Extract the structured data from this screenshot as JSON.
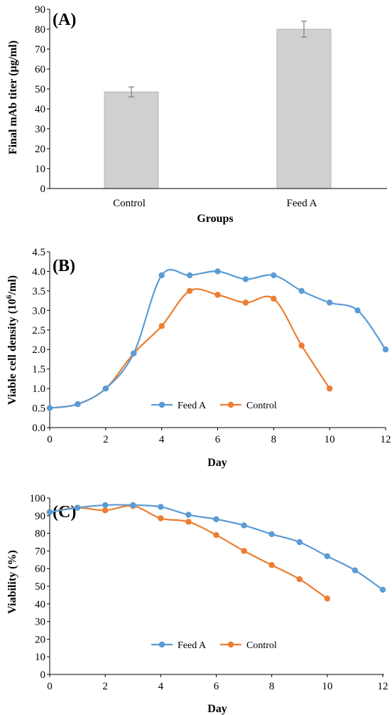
{
  "colors": {
    "feed_a": "#5b9bd5",
    "control": "#ed7d31",
    "bar": "#d0d0d0",
    "bar_edge": "#b4b4b4",
    "error_bar": "#7f7f7f"
  },
  "chart_data": [
    {
      "panel_label": "(A)",
      "type": "bar",
      "categories": [
        "Control",
        "Feed A"
      ],
      "values": [
        48.5,
        80.0
      ],
      "errors": [
        2.5,
        4.0
      ],
      "xlabel": "Groups",
      "ylabel": "Final mAb titer (μg/ml)",
      "ylim": [
        0,
        90
      ],
      "yticks": [
        0,
        10,
        20,
        30,
        40,
        50,
        60,
        70,
        80,
        90
      ],
      "grid": false
    },
    {
      "panel_label": "(B)",
      "type": "line",
      "xlabel": "Day",
      "ylabel_main": "Viable cell density (10",
      "ylabel_sup": "6",
      "ylabel_end": "/ml)",
      "xlim": [
        0,
        12
      ],
      "ylim": [
        0,
        4.5
      ],
      "xticks": [
        0,
        2,
        4,
        6,
        8,
        10,
        12
      ],
      "yticks": [
        "0.0",
        "0.5",
        "1.0",
        "1.5",
        "2.0",
        "2.5",
        "3.0",
        "3.5",
        "4.0",
        "4.5"
      ],
      "legend": "bottom-center",
      "grid": false,
      "series": [
        {
          "name": "Feed A",
          "x": [
            0,
            1,
            2,
            3,
            4,
            5,
            6,
            7,
            8,
            9,
            10,
            11,
            12
          ],
          "y": [
            0.5,
            0.6,
            1.0,
            1.9,
            3.9,
            3.9,
            4.0,
            3.8,
            3.9,
            3.5,
            3.2,
            3.0,
            2.0
          ]
        },
        {
          "name": "Control",
          "x": [
            0,
            1,
            2,
            3,
            4,
            5,
            6,
            7,
            8,
            9,
            10
          ],
          "y": [
            0.5,
            0.6,
            1.0,
            1.9,
            2.6,
            3.5,
            3.4,
            3.2,
            3.3,
            2.1,
            1.0
          ]
        }
      ]
    },
    {
      "panel_label": "(C)",
      "type": "line",
      "xlabel": "Day",
      "ylabel": "Viability (%)",
      "xlim": [
        0,
        12
      ],
      "ylim": [
        0,
        100
      ],
      "xticks": [
        0,
        2,
        4,
        6,
        8,
        10,
        12
      ],
      "yticks": [
        0,
        10,
        20,
        30,
        40,
        50,
        60,
        70,
        80,
        90,
        100
      ],
      "legend": "bottom-center",
      "grid": false,
      "series": [
        {
          "name": "Feed A",
          "x": [
            0,
            1,
            2,
            3,
            4,
            5,
            6,
            7,
            8,
            9,
            10,
            11,
            12
          ],
          "y": [
            92,
            94.5,
            96,
            96,
            95,
            90.5,
            88,
            84.5,
            79.5,
            75,
            67,
            59,
            48
          ]
        },
        {
          "name": "Control",
          "x": [
            0,
            1,
            2,
            3,
            4,
            5,
            6,
            7,
            8,
            9,
            10
          ],
          "y": [
            92,
            94.5,
            93,
            95.5,
            88.5,
            86.5,
            79,
            70,
            62,
            54,
            43
          ]
        }
      ]
    }
  ]
}
